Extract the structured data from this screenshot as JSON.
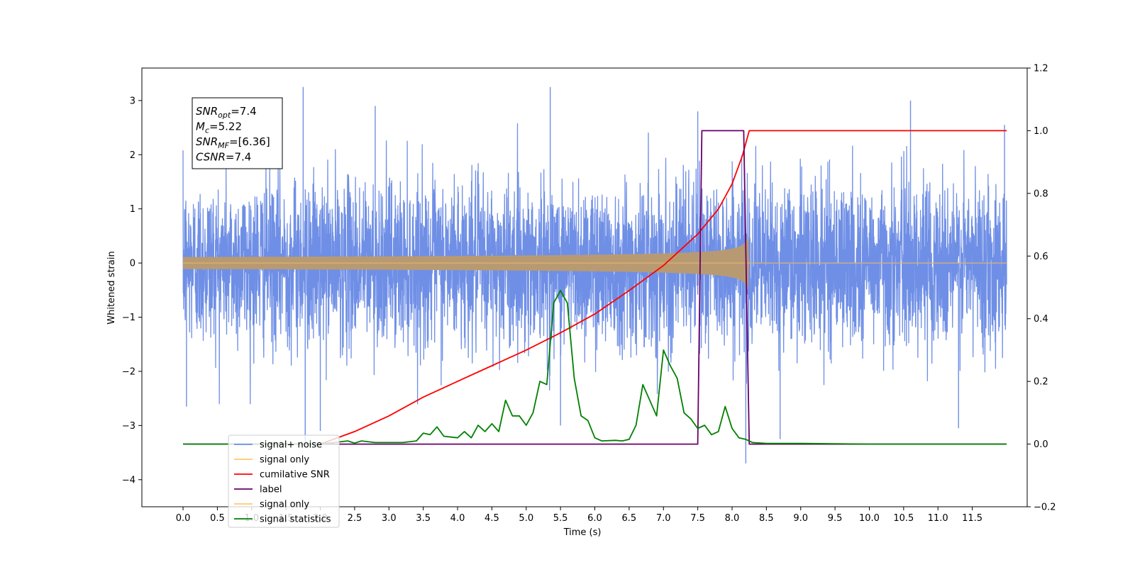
{
  "chart_data": {
    "type": "line",
    "xlabel": "Time (s)",
    "ylabel_left": "Whitened strain",
    "ylabel_right": "",
    "xlim": [
      -0.6,
      12.3
    ],
    "ylim_left": [
      -4.5,
      3.6
    ],
    "ylim_right": [
      -0.2,
      1.2
    ],
    "x_ticks": [
      "0.0",
      "0.5",
      "1.0",
      "1.5",
      "2.0",
      "2.5",
      "3.0",
      "3.5",
      "4.0",
      "4.5",
      "5.0",
      "5.5",
      "6.0",
      "6.5",
      "7.0",
      "7.5",
      "8.0",
      "8.5",
      "9.0",
      "9.5",
      "10.0",
      "10.5",
      "11.0",
      "11.5"
    ],
    "y_ticks_left": [
      "3",
      "2",
      "1",
      "0",
      "−1",
      "−2",
      "−3",
      "−4"
    ],
    "y_ticks_right": [
      "1.2",
      "1.0",
      "0.8",
      "0.6",
      "0.4",
      "0.2",
      "0.0",
      "−0.2"
    ],
    "grid": false,
    "legend_placement": "lower-left",
    "legend": [
      {
        "label": "signal+ noise",
        "color": "#6f8fe6"
      },
      {
        "label": "signal only",
        "color": "#ffc870"
      },
      {
        "label": "cumilative SNR",
        "color": "#ff0000"
      },
      {
        "label": "label",
        "color": "#6a006a"
      },
      {
        "label": "signal only",
        "color": "#ffc870"
      },
      {
        "label": "signal statistics",
        "color": "#008000"
      }
    ],
    "annotation": {
      "lines": [
        {
          "sym": "SNR",
          "sub": "opt",
          "val": "=7.4"
        },
        {
          "sym": "M",
          "sub": "c",
          "val": "=5.22"
        },
        {
          "sym": "SNR",
          "sub": "MF",
          "val": "=[6.36]"
        },
        {
          "sym": "CSNR",
          "sub": "",
          "val": "=7.4"
        }
      ]
    },
    "series": [
      {
        "name": "signal+ noise",
        "axis": "left",
        "kind": "noise",
        "x_range": [
          0.0,
          12.0
        ],
        "std": 0.75,
        "spikes": [
          {
            "x": 1.75,
            "y": 3.25
          },
          {
            "x": 5.35,
            "y": 3.25
          },
          {
            "x": 10.6,
            "y": 3.0
          },
          {
            "x": 2.8,
            "y": 2.9
          },
          {
            "x": 7.5,
            "y": 2.8
          },
          {
            "x": 1.78,
            "y": -3.3
          },
          {
            "x": 2.0,
            "y": -3.1
          },
          {
            "x": 8.2,
            "y": -3.7
          },
          {
            "x": 8.7,
            "y": -3.25
          },
          {
            "x": 11.3,
            "y": -3.05
          },
          {
            "x": 5.5,
            "y": -3.0
          },
          {
            "x": 0.05,
            "y": -2.65
          },
          {
            "x": 11.97,
            "y": 2.55
          }
        ]
      },
      {
        "name": "signal only",
        "axis": "left",
        "kind": "chirp",
        "start": 0.0,
        "merger": 8.25,
        "end": 12.0,
        "peak_amp": 0.5
      },
      {
        "name": "cumilative SNR",
        "axis": "right",
        "x": [
          2.0,
          2.5,
          3.0,
          3.5,
          4.0,
          4.5,
          5.0,
          5.5,
          6.0,
          6.5,
          7.0,
          7.5,
          7.8,
          8.0,
          8.15,
          8.25,
          12.0
        ],
        "y": [
          0.0,
          0.04,
          0.09,
          0.15,
          0.2,
          0.25,
          0.3,
          0.355,
          0.415,
          0.49,
          0.57,
          0.67,
          0.75,
          0.83,
          0.92,
          1.0,
          1.0
        ]
      },
      {
        "name": "label",
        "axis": "right",
        "x": [
          0.0,
          7.5,
          7.56,
          8.17,
          8.25,
          12.0
        ],
        "y": [
          0.0,
          0.0,
          1.0,
          1.0,
          0.0,
          0.0
        ]
      },
      {
        "name": "signal statistics",
        "axis": "right",
        "x": [
          0.0,
          2.0,
          2.2,
          2.4,
          2.5,
          2.6,
          2.8,
          3.0,
          3.2,
          3.4,
          3.5,
          3.6,
          3.7,
          3.8,
          4.0,
          4.1,
          4.2,
          4.3,
          4.4,
          4.5,
          4.6,
          4.7,
          4.8,
          4.9,
          5.0,
          5.1,
          5.2,
          5.3,
          5.4,
          5.5,
          5.6,
          5.7,
          5.8,
          5.9,
          6.0,
          6.1,
          6.3,
          6.4,
          6.5,
          6.6,
          6.7,
          6.8,
          6.9,
          7.0,
          7.1,
          7.2,
          7.3,
          7.4,
          7.5,
          7.6,
          7.7,
          7.8,
          7.9,
          8.0,
          8.1,
          8.2,
          8.3,
          8.5,
          9.0,
          9.5,
          10.0,
          12.0
        ],
        "y": [
          0.0,
          0.0,
          0.005,
          0.01,
          0.003,
          0.01,
          0.005,
          0.005,
          0.005,
          0.01,
          0.035,
          0.03,
          0.055,
          0.025,
          0.02,
          0.04,
          0.02,
          0.06,
          0.04,
          0.065,
          0.04,
          0.14,
          0.09,
          0.09,
          0.06,
          0.1,
          0.2,
          0.19,
          0.45,
          0.49,
          0.45,
          0.21,
          0.09,
          0.075,
          0.02,
          0.01,
          0.012,
          0.01,
          0.015,
          0.06,
          0.19,
          0.14,
          0.09,
          0.3,
          0.25,
          0.21,
          0.1,
          0.08,
          0.05,
          0.06,
          0.03,
          0.04,
          0.12,
          0.05,
          0.02,
          0.015,
          0.005,
          0.002,
          0.002,
          0.001,
          0.0,
          0.0
        ]
      }
    ]
  }
}
